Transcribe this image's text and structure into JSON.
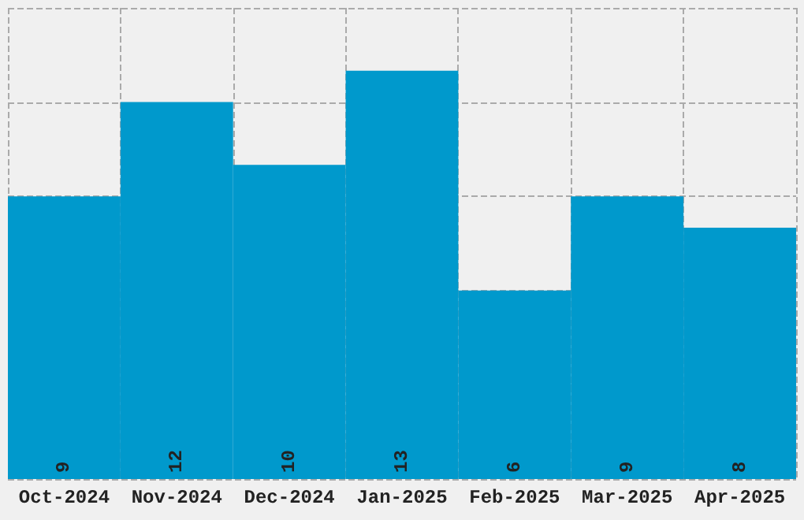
{
  "chart_data": {
    "type": "bar",
    "categories": [
      "Oct-2024",
      "Nov-2024",
      "Dec-2024",
      "Jan-2025",
      "Feb-2025",
      "Mar-2025",
      "Apr-2025"
    ],
    "values": [
      9,
      12,
      10,
      13,
      6,
      9,
      8
    ],
    "color": "#0099cc",
    "data_labels": true,
    "grid": true,
    "tick_labels": "x"
  }
}
